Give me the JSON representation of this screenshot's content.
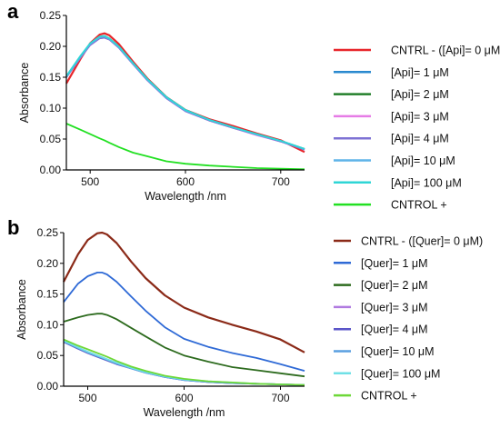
{
  "chart_data": [
    {
      "type": "line",
      "panel_label": "a",
      "xlabel": "Wavelength /nm",
      "ylabel": "Absorbance",
      "xlim": [
        475,
        725
      ],
      "ylim": [
        0,
        0.25
      ],
      "x_ticks": [
        500,
        600,
        700
      ],
      "x_tick_labels": [
        "500",
        "600",
        "700"
      ],
      "y_ticks": [
        0.0,
        0.05,
        0.1,
        0.15,
        0.2,
        0.25
      ],
      "y_tick_labels": [
        "0.00",
        "0.05",
        "0.10",
        "0.15",
        "0.20",
        "0.25"
      ],
      "grid": false,
      "legend_position": "right",
      "x": [
        475,
        490,
        500,
        510,
        515,
        520,
        530,
        545,
        560,
        580,
        600,
        625,
        650,
        675,
        700,
        725
      ],
      "series": [
        {
          "name": "CNTRL - ([Api]= 0 μM)",
          "color": "#e8262b",
          "values": [
            0.14,
            0.18,
            0.205,
            0.219,
            0.221,
            0.218,
            0.204,
            0.175,
            0.148,
            0.118,
            0.097,
            0.082,
            0.071,
            0.059,
            0.048,
            0.029
          ]
        },
        {
          "name": "[Api]= 1 μM",
          "color": "#2a89cf",
          "values": [
            0.151,
            0.184,
            0.203,
            0.214,
            0.215,
            0.212,
            0.199,
            0.172,
            0.146,
            0.117,
            0.096,
            0.08,
            0.068,
            0.057,
            0.046,
            0.033
          ]
        },
        {
          "name": "[Api]= 2 μM",
          "color": "#237f2a",
          "values": [
            0.15,
            0.183,
            0.203,
            0.215,
            0.216,
            0.213,
            0.2,
            0.173,
            0.147,
            0.118,
            0.097,
            0.081,
            0.069,
            0.058,
            0.047,
            0.034
          ]
        },
        {
          "name": "[Api]= 3 μM",
          "color": "#e67be6",
          "values": [
            0.15,
            0.182,
            0.202,
            0.213,
            0.214,
            0.211,
            0.198,
            0.171,
            0.145,
            0.116,
            0.095,
            0.08,
            0.068,
            0.056,
            0.046,
            0.033
          ]
        },
        {
          "name": "[Api]= 4 μM",
          "color": "#7e72d4",
          "values": [
            0.15,
            0.182,
            0.202,
            0.213,
            0.214,
            0.211,
            0.198,
            0.171,
            0.145,
            0.116,
            0.095,
            0.08,
            0.068,
            0.057,
            0.046,
            0.033
          ]
        },
        {
          "name": "[Api]= 10 μM",
          "color": "#5fb4e8",
          "values": [
            0.151,
            0.184,
            0.204,
            0.215,
            0.216,
            0.212,
            0.199,
            0.172,
            0.146,
            0.117,
            0.096,
            0.081,
            0.069,
            0.057,
            0.047,
            0.034
          ]
        },
        {
          "name": "[Api]= 100 μM",
          "color": "#2fd6d6",
          "values": [
            0.152,
            0.185,
            0.205,
            0.216,
            0.217,
            0.213,
            0.2,
            0.173,
            0.147,
            0.118,
            0.097,
            0.081,
            0.069,
            0.058,
            0.047,
            0.034
          ]
        },
        {
          "name": "CNTROL +",
          "color": "#22e022",
          "values": [
            0.075,
            0.065,
            0.058,
            0.051,
            0.048,
            0.044,
            0.037,
            0.028,
            0.022,
            0.014,
            0.01,
            0.007,
            0.005,
            0.003,
            0.002,
            0.001
          ]
        }
      ]
    },
    {
      "type": "line",
      "panel_label": "b",
      "xlabel": "Wavelength /nm",
      "ylabel": "Absorbance",
      "xlim": [
        475,
        725
      ],
      "ylim": [
        0,
        0.25
      ],
      "x_ticks": [
        500,
        600,
        700
      ],
      "x_tick_labels": [
        "500",
        "600",
        "700"
      ],
      "y_ticks": [
        0.0,
        0.05,
        0.1,
        0.15,
        0.2,
        0.25
      ],
      "y_tick_labels": [
        "0.00",
        "0.05",
        "0.10",
        "0.15",
        "0.20",
        "0.25"
      ],
      "grid": false,
      "legend_position": "right",
      "x": [
        475,
        490,
        500,
        510,
        515,
        520,
        530,
        545,
        560,
        580,
        600,
        625,
        650,
        675,
        700,
        725
      ],
      "series": [
        {
          "name": "CNTRL - ([Quer]= 0 μM)",
          "color": "#8b2a18",
          "values": [
            0.17,
            0.215,
            0.238,
            0.249,
            0.25,
            0.247,
            0.233,
            0.203,
            0.176,
            0.148,
            0.128,
            0.112,
            0.1,
            0.089,
            0.076,
            0.055
          ]
        },
        {
          "name": "[Quer]= 1 μM",
          "color": "#2f6ad6",
          "values": [
            0.137,
            0.167,
            0.179,
            0.185,
            0.185,
            0.182,
            0.17,
            0.146,
            0.123,
            0.096,
            0.077,
            0.064,
            0.054,
            0.046,
            0.036,
            0.025
          ]
        },
        {
          "name": "[Quer]= 2 μM",
          "color": "#2d6b1e",
          "values": [
            0.105,
            0.112,
            0.116,
            0.118,
            0.118,
            0.116,
            0.109,
            0.095,
            0.081,
            0.063,
            0.05,
            0.04,
            0.031,
            0.026,
            0.021,
            0.016
          ]
        },
        {
          "name": "[Quer]= 3 μM",
          "color": "#b07ae0",
          "values": [
            0.074,
            0.063,
            0.056,
            0.05,
            0.047,
            0.044,
            0.038,
            0.03,
            0.023,
            0.015,
            0.01,
            0.007,
            0.005,
            0.004,
            0.003,
            0.002
          ]
        },
        {
          "name": "[Quer]= 4 μM",
          "color": "#5a55c8",
          "values": [
            0.072,
            0.061,
            0.054,
            0.048,
            0.045,
            0.042,
            0.036,
            0.029,
            0.022,
            0.015,
            0.01,
            0.007,
            0.005,
            0.004,
            0.003,
            0.002
          ]
        },
        {
          "name": "[Quer]= 10 μM",
          "color": "#5a9fe0",
          "values": [
            0.073,
            0.062,
            0.055,
            0.049,
            0.046,
            0.043,
            0.037,
            0.029,
            0.022,
            0.015,
            0.01,
            0.007,
            0.005,
            0.004,
            0.003,
            0.002
          ]
        },
        {
          "name": "[Quer]= 100 μM",
          "color": "#6fe0e6",
          "values": [
            0.074,
            0.063,
            0.056,
            0.05,
            0.047,
            0.044,
            0.038,
            0.03,
            0.023,
            0.016,
            0.011,
            0.008,
            0.006,
            0.004,
            0.003,
            0.002
          ]
        },
        {
          "name": "CNTROL +",
          "color": "#6ed838",
          "values": [
            0.076,
            0.066,
            0.06,
            0.054,
            0.051,
            0.048,
            0.041,
            0.032,
            0.025,
            0.017,
            0.012,
            0.008,
            0.006,
            0.004,
            0.003,
            0.002
          ]
        }
      ]
    }
  ]
}
